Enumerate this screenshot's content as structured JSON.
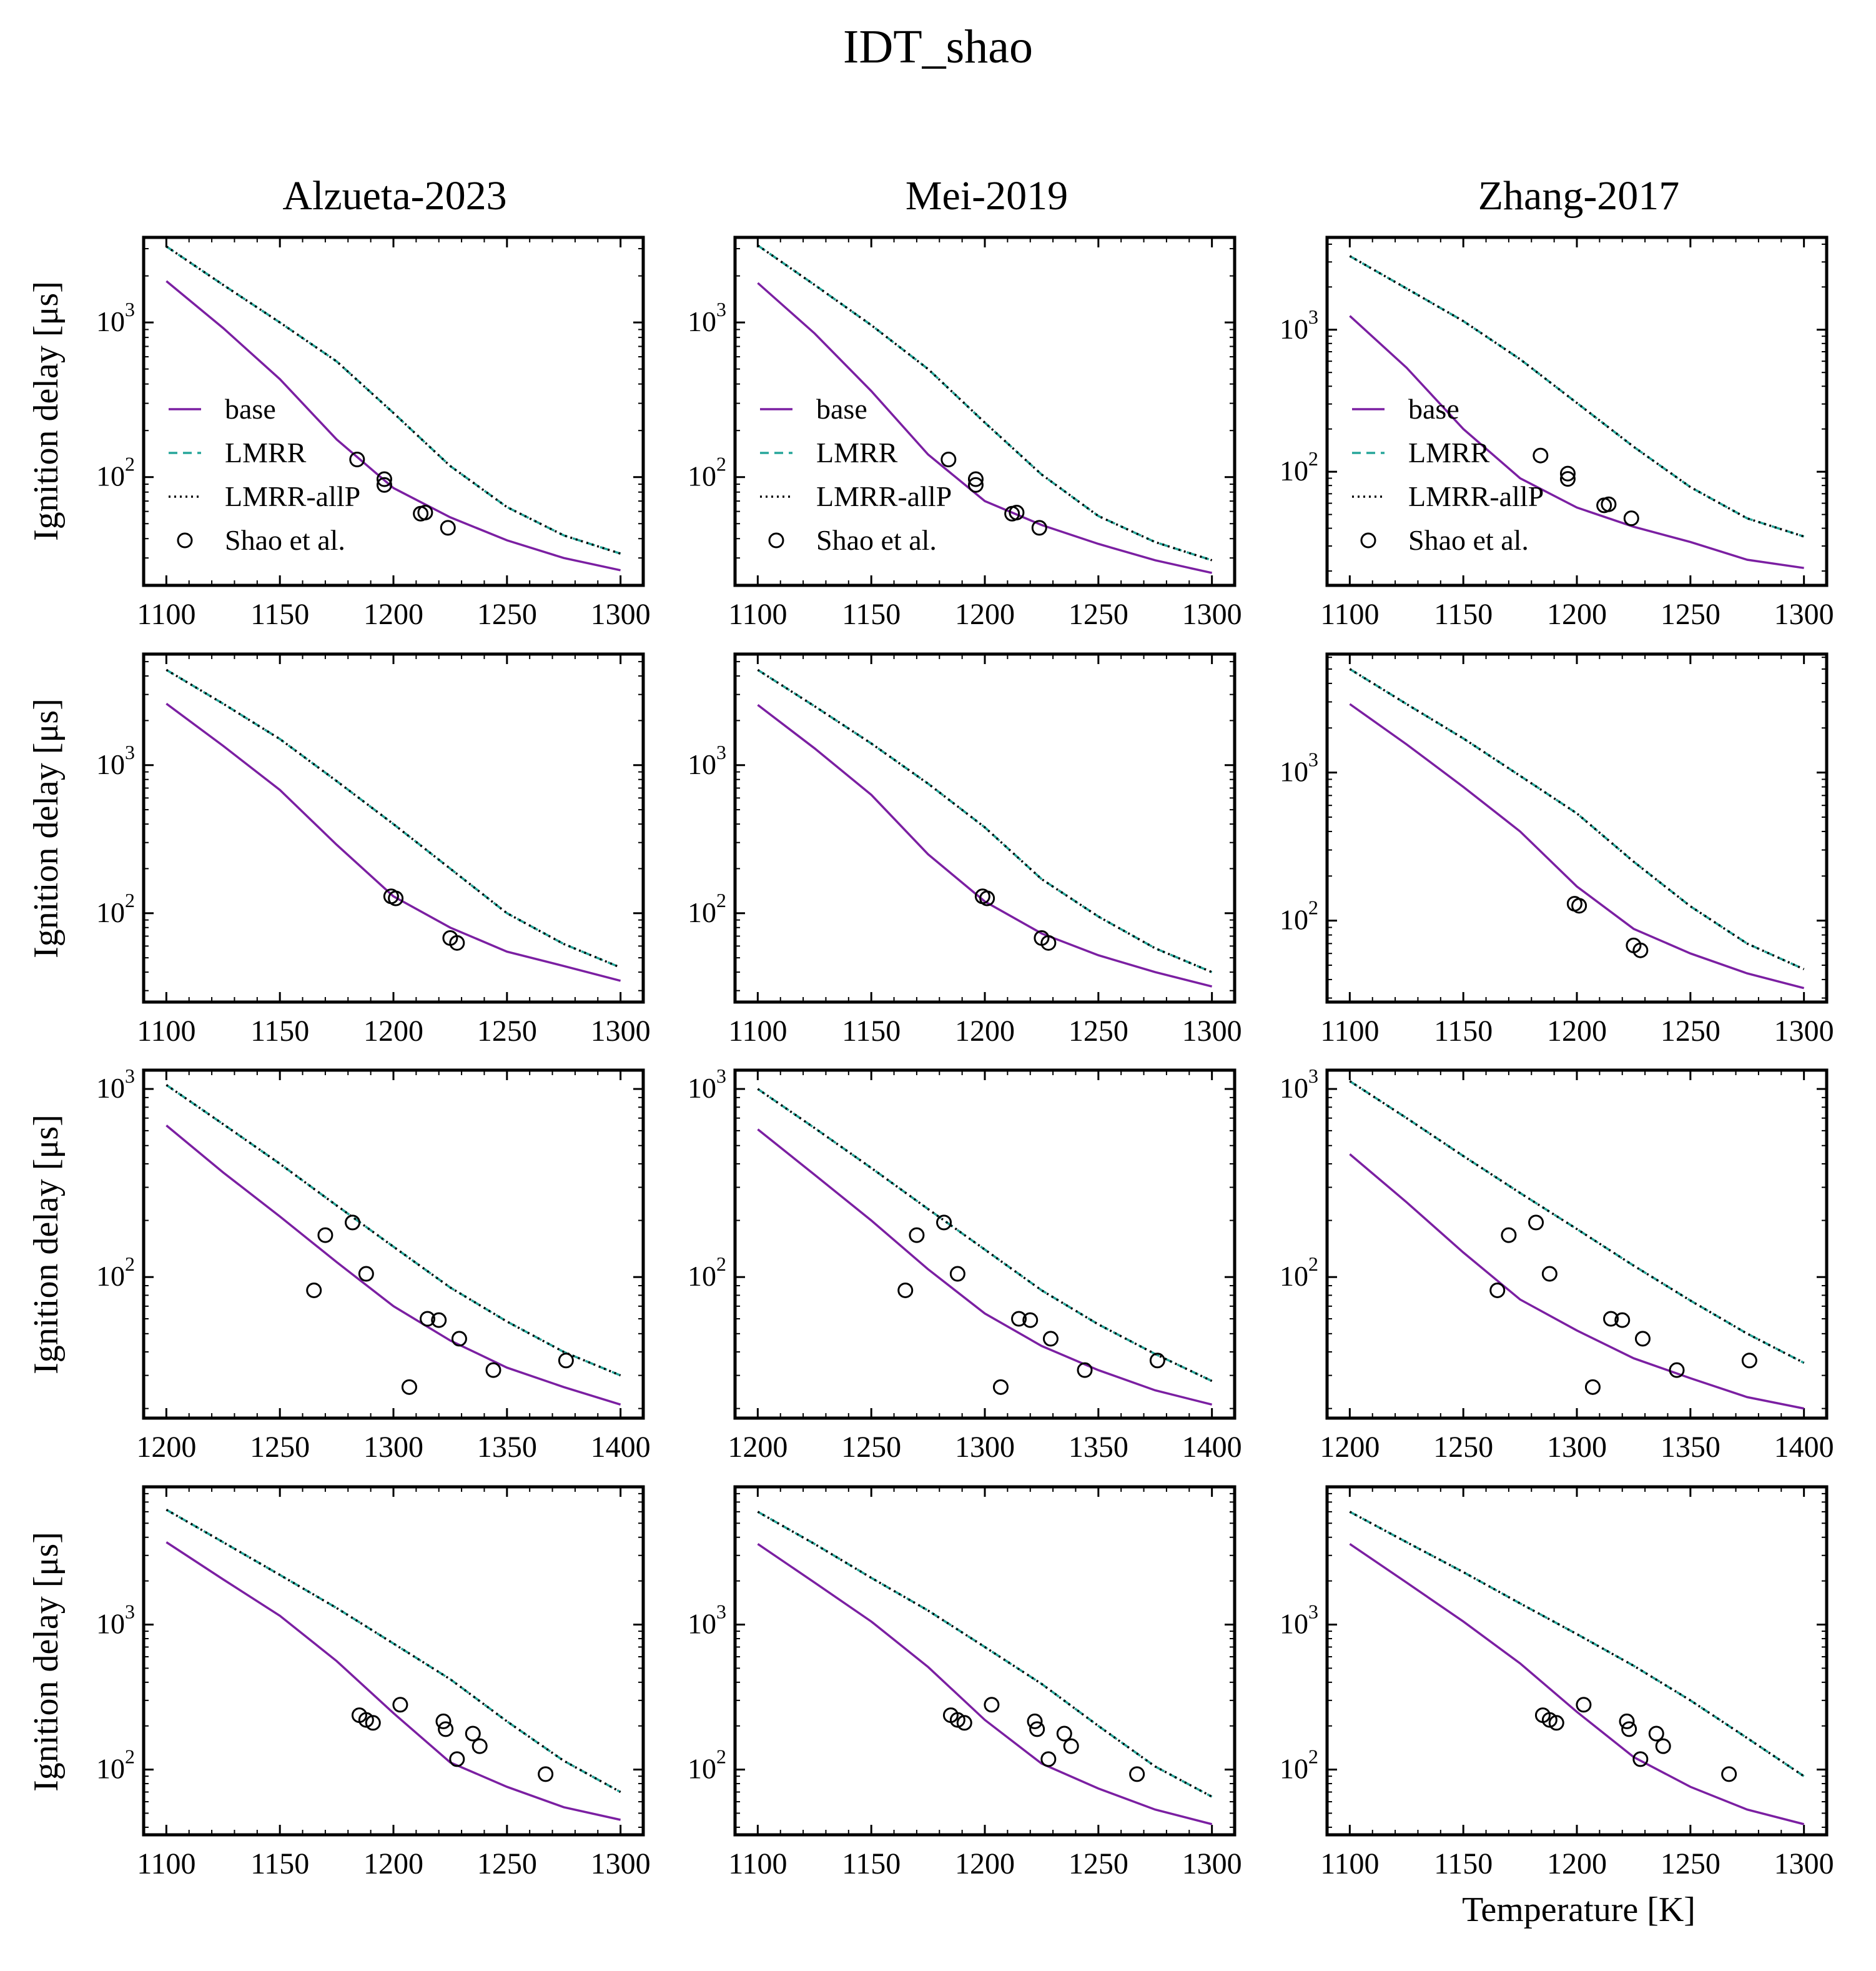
{
  "title": "IDT_shao",
  "column_titles": [
    "Alzueta-2023",
    "Mei-2019",
    "Zhang-2017"
  ],
  "ylabel": "Ignition delay [μs]",
  "xlabel": "Temperature [K]",
  "legend": [
    "base",
    "LMRR",
    "LMRR-allP",
    "Shao et al."
  ],
  "colors": {
    "base": "#7b1fa2",
    "lmrr": "#26a69a",
    "allp": "#000000",
    "data": "#000000"
  },
  "chart_data": [
    {
      "type": "line",
      "row": 0,
      "col": 0,
      "xlim": [
        1090,
        1310
      ],
      "ylim_log10": [
        1.3,
        3.55
      ],
      "xticks": [
        "1100",
        "1150",
        "1200",
        "1250",
        "1300"
      ],
      "x": [
        1100,
        1125,
        1150,
        1175,
        1200,
        1225,
        1250,
        1275,
        1300
      ],
      "series": [
        {
          "name": "base",
          "values": [
            1850,
            920,
            430,
            175,
            85,
            55,
            39,
            30,
            25
          ]
        },
        {
          "name": "LMRR",
          "values": [
            3100,
            1750,
            1000,
            560,
            260,
            118,
            64,
            42,
            32
          ]
        },
        {
          "name": "LMRR-allP",
          "values": [
            3100,
            1750,
            1000,
            560,
            260,
            118,
            64,
            42,
            32
          ]
        }
      ],
      "scatter": {
        "name": "Shao et al.",
        "x": [
          1184,
          1196,
          1196,
          1212,
          1214,
          1224
        ],
        "y": [
          130,
          97,
          89,
          58,
          59,
          47
        ]
      }
    },
    {
      "type": "line",
      "row": 0,
      "col": 1,
      "xlim": [
        1090,
        1310
      ],
      "ylim_log10": [
        1.3,
        3.55
      ],
      "xticks": [
        "1100",
        "1150",
        "1200",
        "1250",
        "1300"
      ],
      "x": [
        1100,
        1125,
        1150,
        1175,
        1200,
        1225,
        1250,
        1275,
        1300
      ],
      "series": [
        {
          "name": "base",
          "values": [
            1800,
            850,
            360,
            140,
            70,
            49,
            37,
            29,
            24
          ]
        },
        {
          "name": "LMRR",
          "values": [
            3150,
            1750,
            960,
            500,
            225,
            104,
            56,
            38,
            29
          ]
        },
        {
          "name": "LMRR-allP",
          "values": [
            3150,
            1750,
            960,
            500,
            225,
            104,
            56,
            38,
            29
          ]
        }
      ],
      "scatter": {
        "name": "Shao et al.",
        "x": [
          1184,
          1196,
          1196,
          1212,
          1214,
          1224
        ],
        "y": [
          130,
          97,
          89,
          58,
          59,
          47
        ]
      }
    },
    {
      "type": "line",
      "row": 0,
      "col": 2,
      "xlim": [
        1090,
        1310
      ],
      "ylim_log10": [
        1.2,
        3.65
      ],
      "xticks": [
        "1100",
        "1150",
        "1200",
        "1250",
        "1300"
      ],
      "x": [
        1100,
        1125,
        1150,
        1175,
        1200,
        1225,
        1250,
        1275,
        1300
      ],
      "series": [
        {
          "name": "base",
          "values": [
            1250,
            540,
            200,
            90,
            56,
            41,
            32,
            24,
            21
          ]
        },
        {
          "name": "LMRR",
          "values": [
            3300,
            1950,
            1150,
            620,
            305,
            150,
            78,
            47,
            35
          ]
        },
        {
          "name": "LMRR-allP",
          "values": [
            3300,
            1950,
            1150,
            620,
            305,
            150,
            78,
            47,
            35
          ]
        }
      ],
      "scatter": {
        "name": "Shao et al.",
        "x": [
          1184,
          1196,
          1196,
          1212,
          1214,
          1224
        ],
        "y": [
          130,
          97,
          89,
          58,
          59,
          47
        ]
      }
    },
    {
      "type": "line",
      "row": 1,
      "col": 0,
      "xlim": [
        1090,
        1310
      ],
      "ylim_log10": [
        1.4,
        3.75
      ],
      "xticks": [
        "1100",
        "1150",
        "1200",
        "1250",
        "1300"
      ],
      "x": [
        1100,
        1125,
        1150,
        1175,
        1200,
        1225,
        1250,
        1275,
        1300
      ],
      "series": [
        {
          "name": "base",
          "values": [
            2600,
            1350,
            680,
            290,
            130,
            80,
            55,
            44,
            35
          ]
        },
        {
          "name": "LMRR",
          "values": [
            4400,
            2600,
            1500,
            780,
            400,
            200,
            100,
            62,
            43
          ]
        },
        {
          "name": "LMRR-allP",
          "values": [
            4400,
            2600,
            1500,
            780,
            400,
            200,
            100,
            62,
            43
          ]
        }
      ],
      "scatter": {
        "name": "Shao et al.",
        "x": [
          1199,
          1201,
          1225,
          1228
        ],
        "y": [
          130,
          126,
          68,
          63
        ]
      }
    },
    {
      "type": "line",
      "row": 1,
      "col": 1,
      "xlim": [
        1090,
        1310
      ],
      "ylim_log10": [
        1.4,
        3.75
      ],
      "xticks": [
        "1100",
        "1150",
        "1200",
        "1250",
        "1300"
      ],
      "x": [
        1100,
        1125,
        1150,
        1175,
        1200,
        1225,
        1250,
        1275,
        1300
      ],
      "series": [
        {
          "name": "base",
          "values": [
            2550,
            1300,
            630,
            250,
            120,
            73,
            52,
            40,
            32
          ]
        },
        {
          "name": "LMRR",
          "values": [
            4400,
            2500,
            1400,
            750,
            380,
            170,
            95,
            58,
            40
          ]
        },
        {
          "name": "LMRR-allP",
          "values": [
            4400,
            2500,
            1400,
            750,
            380,
            170,
            95,
            58,
            40
          ]
        }
      ],
      "scatter": {
        "name": "Shao et al.",
        "x": [
          1199,
          1201,
          1225,
          1228
        ],
        "y": [
          130,
          126,
          68,
          63
        ]
      }
    },
    {
      "type": "line",
      "row": 1,
      "col": 2,
      "xlim": [
        1090,
        1310
      ],
      "ylim_log10": [
        1.45,
        3.8
      ],
      "xticks": [
        "1100",
        "1150",
        "1200",
        "1250",
        "1300"
      ],
      "x": [
        1100,
        1125,
        1150,
        1175,
        1200,
        1225,
        1250,
        1275,
        1300
      ],
      "series": [
        {
          "name": "base",
          "values": [
            2900,
            1550,
            800,
            400,
            170,
            88,
            60,
            44,
            35
          ]
        },
        {
          "name": "LMRR",
          "values": [
            5000,
            2900,
            1700,
            950,
            530,
            250,
            125,
            70,
            47
          ]
        },
        {
          "name": "LMRR-allP",
          "values": [
            5000,
            2900,
            1700,
            950,
            530,
            250,
            125,
            70,
            47
          ]
        }
      ],
      "scatter": {
        "name": "Shao et al.",
        "x": [
          1199,
          1201,
          1225,
          1228
        ],
        "y": [
          130,
          126,
          68,
          63
        ]
      }
    },
    {
      "type": "line",
      "row": 2,
      "col": 0,
      "xlim": [
        1190,
        1410
      ],
      "ylim_log10": [
        1.25,
        3.1
      ],
      "xticks": [
        "1200",
        "1250",
        "1300",
        "1350",
        "1400"
      ],
      "x": [
        1200,
        1225,
        1250,
        1275,
        1300,
        1325,
        1350,
        1375,
        1400
      ],
      "series": [
        {
          "name": "base",
          "values": [
            640,
            360,
            210,
            120,
            70,
            46,
            33,
            26,
            21
          ]
        },
        {
          "name": "LMRR",
          "values": [
            1050,
            650,
            400,
            240,
            145,
            88,
            58,
            40,
            30
          ]
        },
        {
          "name": "LMRR-allP",
          "values": [
            1050,
            650,
            400,
            240,
            145,
            88,
            58,
            40,
            30
          ]
        }
      ],
      "scatter": {
        "name": "Shao et al.",
        "x": [
          1265,
          1270,
          1282,
          1288,
          1307,
          1315,
          1320,
          1329,
          1344,
          1376
        ],
        "y": [
          85,
          167,
          195,
          104,
          26,
          60,
          59,
          47,
          32,
          36
        ]
      }
    },
    {
      "type": "line",
      "row": 2,
      "col": 1,
      "xlim": [
        1190,
        1410
      ],
      "ylim_log10": [
        1.25,
        3.1
      ],
      "xticks": [
        "1200",
        "1250",
        "1300",
        "1350",
        "1400"
      ],
      "x": [
        1200,
        1225,
        1250,
        1275,
        1300,
        1325,
        1350,
        1375,
        1400
      ],
      "series": [
        {
          "name": "base",
          "values": [
            610,
            350,
            200,
            110,
            64,
            43,
            32,
            25,
            21
          ]
        },
        {
          "name": "LMRR",
          "values": [
            1000,
            620,
            380,
            230,
            140,
            85,
            56,
            39,
            28
          ]
        },
        {
          "name": "LMRR-allP",
          "values": [
            1000,
            620,
            380,
            230,
            140,
            85,
            56,
            39,
            28
          ]
        }
      ],
      "scatter": {
        "name": "Shao et al.",
        "x": [
          1265,
          1270,
          1282,
          1288,
          1307,
          1315,
          1320,
          1329,
          1344,
          1376
        ],
        "y": [
          85,
          167,
          195,
          104,
          26,
          60,
          59,
          47,
          32,
          36
        ]
      }
    },
    {
      "type": "line",
      "row": 2,
      "col": 2,
      "xlim": [
        1190,
        1410
      ],
      "ylim_log10": [
        1.25,
        3.1
      ],
      "xticks": [
        "1200",
        "1250",
        "1300",
        "1350",
        "1400"
      ],
      "x": [
        1200,
        1225,
        1250,
        1275,
        1300,
        1325,
        1350,
        1375,
        1400
      ],
      "series": [
        {
          "name": "base",
          "values": [
            450,
            250,
            135,
            76,
            52,
            37,
            29,
            23,
            20
          ]
        },
        {
          "name": "LMRR",
          "values": [
            1100,
            700,
            440,
            280,
            180,
            115,
            75,
            50,
            35
          ]
        },
        {
          "name": "LMRR-allP",
          "values": [
            1100,
            700,
            440,
            280,
            180,
            115,
            75,
            50,
            35
          ]
        }
      ],
      "scatter": {
        "name": "Shao et al.",
        "x": [
          1265,
          1270,
          1282,
          1288,
          1307,
          1315,
          1320,
          1329,
          1344,
          1376
        ],
        "y": [
          85,
          167,
          195,
          104,
          26,
          60,
          59,
          47,
          32,
          36
        ]
      }
    },
    {
      "type": "line",
      "row": 3,
      "col": 0,
      "xlim": [
        1090,
        1310
      ],
      "ylim_log10": [
        1.55,
        3.95
      ],
      "xticks": [
        "1100",
        "1150",
        "1200",
        "1250",
        "1300"
      ],
      "x": [
        1100,
        1125,
        1150,
        1175,
        1200,
        1225,
        1250,
        1275,
        1300
      ],
      "series": [
        {
          "name": "base",
          "values": [
            3700,
            2050,
            1150,
            560,
            245,
            112,
            76,
            55,
            45
          ]
        },
        {
          "name": "LMRR",
          "values": [
            6200,
            3700,
            2200,
            1300,
            740,
            420,
            215,
            115,
            70
          ]
        },
        {
          "name": "LMRR-allP",
          "values": [
            6200,
            3700,
            2200,
            1300,
            740,
            420,
            215,
            115,
            70
          ]
        }
      ],
      "scatter": {
        "name": "Shao et al.",
        "x": [
          1185,
          1188,
          1191,
          1203,
          1222,
          1223,
          1228,
          1235,
          1238,
          1267
        ],
        "y": [
          237,
          220,
          210,
          280,
          215,
          190,
          118,
          177,
          145,
          93
        ]
      }
    },
    {
      "type": "line",
      "row": 3,
      "col": 1,
      "xlim": [
        1090,
        1310
      ],
      "ylim_log10": [
        1.55,
        3.95
      ],
      "xticks": [
        "1100",
        "1150",
        "1200",
        "1250",
        "1300"
      ],
      "x": [
        1100,
        1125,
        1150,
        1175,
        1200,
        1225,
        1250,
        1275,
        1300
      ],
      "series": [
        {
          "name": "base",
          "values": [
            3600,
            1950,
            1050,
            510,
            220,
            110,
            74,
            53,
            42
          ]
        },
        {
          "name": "LMRR",
          "values": [
            6000,
            3600,
            2100,
            1250,
            700,
            390,
            200,
            105,
            65
          ]
        },
        {
          "name": "LMRR-allP",
          "values": [
            6000,
            3600,
            2100,
            1250,
            700,
            390,
            200,
            105,
            65
          ]
        }
      ],
      "scatter": {
        "name": "Shao et al.",
        "x": [
          1185,
          1188,
          1191,
          1203,
          1222,
          1223,
          1228,
          1235,
          1238,
          1267
        ],
        "y": [
          237,
          220,
          210,
          280,
          215,
          190,
          118,
          177,
          145,
          93
        ]
      }
    },
    {
      "type": "line",
      "row": 3,
      "col": 2,
      "xlim": [
        1090,
        1310
      ],
      "ylim_log10": [
        1.55,
        3.95
      ],
      "xticks": [
        "1100",
        "1150",
        "1200",
        "1250",
        "1300"
      ],
      "x": [
        1100,
        1125,
        1150,
        1175,
        1200,
        1225,
        1250,
        1275,
        1300
      ],
      "series": [
        {
          "name": "base",
          "values": [
            3600,
            1950,
            1050,
            540,
            250,
            122,
            76,
            53,
            42
          ]
        },
        {
          "name": "LMRR",
          "values": [
            6000,
            3700,
            2300,
            1400,
            860,
            520,
            300,
            165,
            90
          ]
        },
        {
          "name": "LMRR-allP",
          "values": [
            6000,
            3700,
            2300,
            1400,
            860,
            520,
            300,
            165,
            90
          ]
        }
      ],
      "scatter": {
        "name": "Shao et al.",
        "x": [
          1185,
          1188,
          1191,
          1203,
          1222,
          1223,
          1228,
          1235,
          1238,
          1267
        ],
        "y": [
          237,
          220,
          210,
          280,
          215,
          190,
          118,
          177,
          145,
          93
        ]
      }
    }
  ]
}
